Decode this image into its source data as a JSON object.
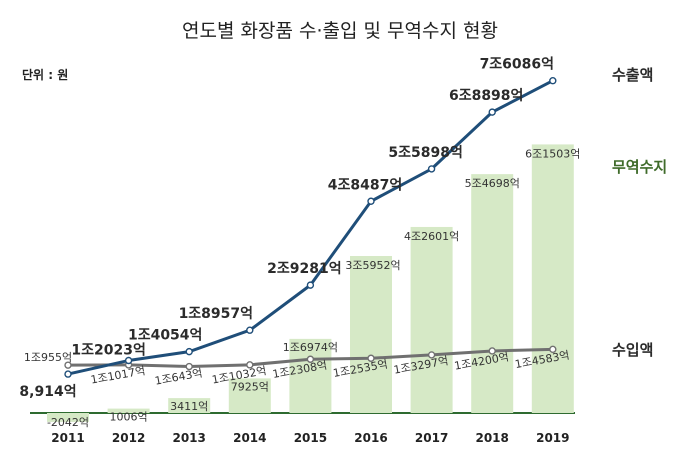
{
  "title": "연도별 화장품 수·출입 및 무역수지 현황",
  "unit_label": "단위 : 원",
  "chart_data": {
    "type": "bar",
    "categories": [
      "2011",
      "2012",
      "2013",
      "2014",
      "2015",
      "2016",
      "2017",
      "2018",
      "2019"
    ],
    "series": [
      {
        "name": "수출액",
        "kind": "line",
        "color": "#1f4e79",
        "values": [
          8914,
          12023,
          14054,
          18957,
          29281,
          48487,
          55898,
          68898,
          76086
        ],
        "labels": [
          "8,914억",
          "1조2023억",
          "1조4054억",
          "1조8957억",
          "2조9281억",
          "4조8487억",
          "5조5898억",
          "6조8898억",
          "7조6086억"
        ]
      },
      {
        "name": "수입액",
        "kind": "line",
        "color": "#707070",
        "values": [
          10955,
          11017,
          10643,
          11032,
          12308,
          12535,
          13297,
          14200,
          14583
        ],
        "labels": [
          "1조955억",
          "1조1017억",
          "1조643억",
          "1조1032억",
          "1조2308억",
          "1조2535억",
          "1조3297억",
          "1조4200억",
          "1조4583억"
        ]
      },
      {
        "name": "무역수지",
        "kind": "bar",
        "color": "#d6e9c6",
        "values": [
          -2042,
          1006,
          3411,
          7925,
          16974,
          35952,
          42601,
          54698,
          61503
        ],
        "labels": [
          "-2042억",
          "1006억",
          "3411억",
          "7925억",
          "1조6974억",
          "3조5952억",
          "4조2601억",
          "5조4698억",
          "6조1503억"
        ]
      }
    ],
    "ylim": [
      -2500,
      80000
    ],
    "grid": false,
    "legend_position": "right"
  }
}
